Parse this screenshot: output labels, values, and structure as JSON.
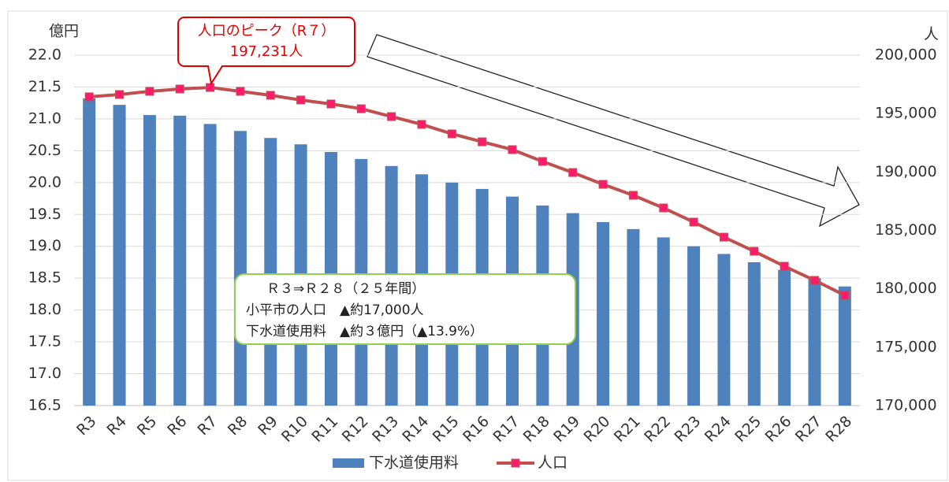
{
  "chart_data": {
    "type": "bar-line",
    "y_label": "億円",
    "y2_label": "人",
    "categories": [
      "R3",
      "R4",
      "R5",
      "R6",
      "R7",
      "R8",
      "R9",
      "R10",
      "R11",
      "R12",
      "R13",
      "R14",
      "R15",
      "R16",
      "R17",
      "R18",
      "R19",
      "R20",
      "R21",
      "R22",
      "R23",
      "R24",
      "R25",
      "R26",
      "R27",
      "R28"
    ],
    "series": [
      {
        "name": "下水道使用料",
        "type": "bar",
        "color": "#4f81bd",
        "values": [
          21.32,
          21.22,
          21.06,
          21.05,
          20.92,
          20.81,
          20.7,
          20.6,
          20.48,
          20.37,
          20.26,
          20.13,
          20.0,
          19.9,
          19.78,
          19.64,
          19.52,
          19.38,
          19.27,
          19.14,
          19.0,
          18.88,
          18.75,
          18.63,
          18.5,
          18.37
        ]
      },
      {
        "name": "人口",
        "type": "line",
        "axis": "y2",
        "color": "#c0504d",
        "marker_color": "#ff1a6e",
        "values": [
          196430,
          196630,
          196900,
          197100,
          197231,
          196900,
          196560,
          196160,
          195820,
          195410,
          194740,
          194070,
          193260,
          192580,
          191910,
          190900,
          189950,
          188940,
          188000,
          186920,
          185710,
          184420,
          183210,
          181930,
          180720,
          179440
        ]
      }
    ],
    "ylim": [
      16.5,
      22.0
    ],
    "yticks": [
      {
        "value": 16.5,
        "label": "16.5"
      },
      {
        "value": 17,
        "label": "17.0"
      },
      17.5,
      {
        "value": 18,
        "label": "18.0"
      },
      18.5,
      {
        "value": 19,
        "label": "19.0"
      },
      19.5,
      {
        "value": 20,
        "label": "20.0"
      },
      20.5,
      {
        "value": 21,
        "label": "21.0"
      },
      21.5,
      {
        "value": 22,
        "label": "22.0"
      }
    ],
    "y2lim": [
      170000,
      200000
    ],
    "y2ticks": [
      {
        "value": 170000,
        "label": "170,000"
      },
      {
        "value": 175000,
        "label": "175,000"
      },
      {
        "value": 180000,
        "label": "180,000"
      },
      {
        "value": 185000,
        "label": "185,000"
      },
      {
        "value": 190000,
        "label": "190,000"
      },
      {
        "value": 195000,
        "label": "195,000"
      },
      {
        "value": 200000,
        "label": "200,000"
      }
    ],
    "grid": true,
    "legend": "bottom",
    "callout": [
      "人口のピーク（R７）",
      "197,231人"
    ],
    "summary": [
      "Ｒ３⇒Ｒ２８（２５年間）",
      "小平市の人口　▲約17,000人",
      "下水道使用料　▲約３億円（▲13.9%）"
    ]
  }
}
